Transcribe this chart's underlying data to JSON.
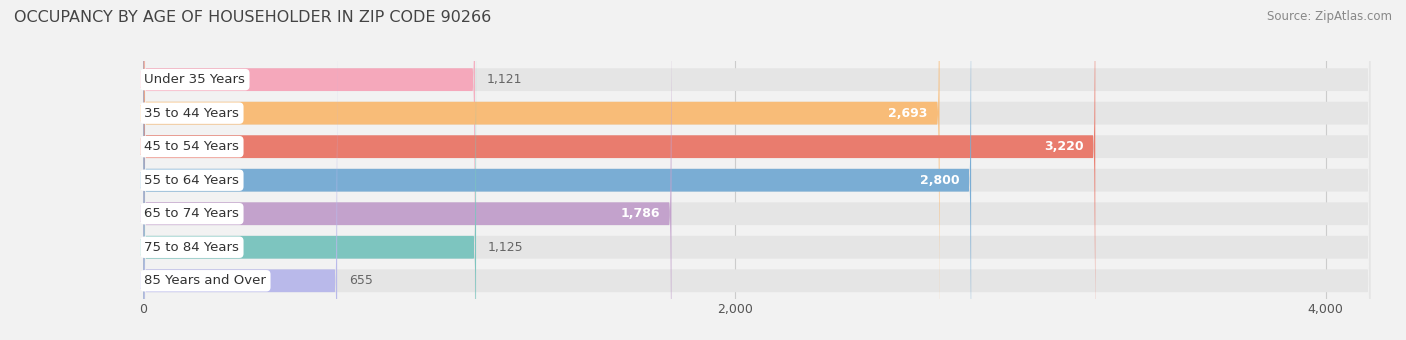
{
  "title": "OCCUPANCY BY AGE OF HOUSEHOLDER IN ZIP CODE 90266",
  "source": "Source: ZipAtlas.com",
  "categories": [
    "Under 35 Years",
    "35 to 44 Years",
    "45 to 54 Years",
    "55 to 64 Years",
    "65 to 74 Years",
    "75 to 84 Years",
    "85 Years and Over"
  ],
  "values": [
    1121,
    2693,
    3220,
    2800,
    1786,
    1125,
    655
  ],
  "bar_colors": [
    "#F5A8BB",
    "#F8BC78",
    "#E97C6E",
    "#7AADD4",
    "#C3A2CC",
    "#7DC5BF",
    "#B9B9EA"
  ],
  "value_inside_color": "#ffffff",
  "value_outside_color": "#666666",
  "value_threshold": 1500,
  "xlim_left": -10,
  "xlim_right": 4200,
  "xticks": [
    0,
    2000,
    4000
  ],
  "bg_color": "#f2f2f2",
  "bar_bg_color": "#e5e5e5",
  "grid_color": "#cccccc",
  "title_fontsize": 11.5,
  "source_fontsize": 8.5,
  "label_fontsize": 9.5,
  "value_fontsize": 9
}
